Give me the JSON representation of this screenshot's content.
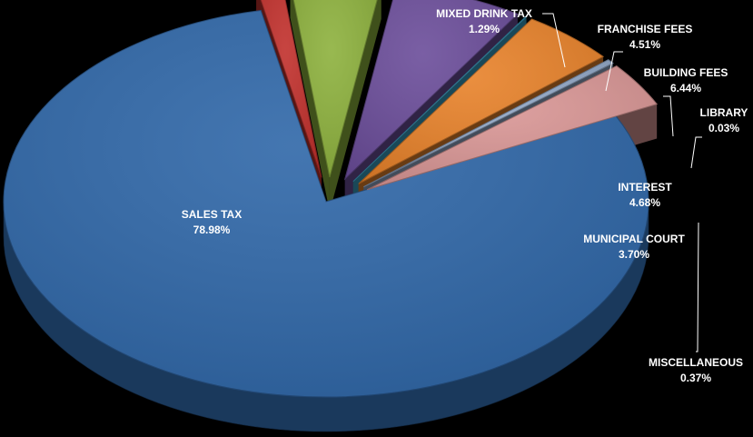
{
  "chart_data": {
    "type": "pie",
    "style": "3d-exploded",
    "title": "",
    "slices": [
      {
        "label": "SALES TAX",
        "value": 78.98,
        "display": "78.98%",
        "color": "#2f67a8"
      },
      {
        "label": "MIXED DRINK TAX",
        "value": 1.29,
        "display": "1.29%",
        "color": "#c1302c"
      },
      {
        "label": "FRANCHISE FEES",
        "value": 4.51,
        "display": "4.51%",
        "color": "#8db13d"
      },
      {
        "label": "BUILDING FEES",
        "value": 6.44,
        "display": "6.44%",
        "color": "#6b4d9a"
      },
      {
        "label": "LIBRARY",
        "value": 0.03,
        "display": "0.03%",
        "color": "#3aa0c4"
      },
      {
        "label": "INTEREST",
        "value": 4.68,
        "display": "4.68%",
        "color": "#e8822a"
      },
      {
        "label": "MISCELLANEOUS",
        "value": 0.37,
        "display": "0.37%",
        "color": "#93a9c8"
      },
      {
        "label": "MUNICIPAL COURT",
        "value": 3.7,
        "display": "3.70%",
        "color": "#d99695"
      }
    ],
    "background": "#000000",
    "label_color": "#ffffff"
  }
}
